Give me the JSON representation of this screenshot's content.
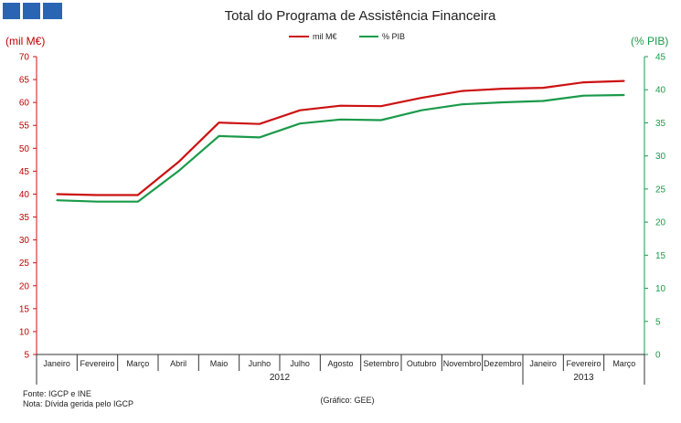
{
  "chart_data": {
    "type": "line",
    "title": "Total do Programa de Assistência Financeira",
    "ylabel_left": "(mil M€)",
    "ylabel_right": "(% PIB)",
    "ylim_left": [
      5,
      70
    ],
    "ylim_right": [
      0,
      45
    ],
    "yticks_left": [
      5,
      10,
      15,
      20,
      25,
      30,
      35,
      40,
      45,
      50,
      55,
      60,
      65,
      70
    ],
    "yticks_right": [
      0,
      5,
      10,
      15,
      20,
      25,
      30,
      35,
      40,
      45
    ],
    "categories": [
      "Janeiro",
      "Fevereiro",
      "Março",
      "Abril",
      "Maio",
      "Junho",
      "Julho",
      "Agosto",
      "Setembro",
      "Outubro",
      "Novembro",
      "Dezembro",
      "Janeiro",
      "Fevereiro",
      "Março"
    ],
    "year_groups": [
      {
        "label": "2012",
        "count": 12
      },
      {
        "label": "2013",
        "count": 3
      }
    ],
    "series": [
      {
        "name": "mil M€",
        "axis": "left",
        "color": "#cc1111",
        "values": [
          40.0,
          39.8,
          39.8,
          47.0,
          55.6,
          55.3,
          58.3,
          59.3,
          59.2,
          61.0,
          62.5,
          63.0,
          63.2,
          64.4,
          64.7
        ]
      },
      {
        "name": "% PIB",
        "axis": "right",
        "color": "#1a9a4a",
        "values": [
          23.3,
          23.1,
          23.1,
          27.7,
          33.0,
          32.8,
          34.9,
          35.5,
          35.4,
          36.9,
          37.8,
          38.1,
          38.3,
          39.1,
          39.2
        ]
      }
    ],
    "legend_position": "top-center"
  },
  "footer": {
    "source": "Fonte: IGCP e INE",
    "note": "Nota: Dívida gerida pelo IGCP",
    "credit": "(Gráfico: GEE)"
  }
}
